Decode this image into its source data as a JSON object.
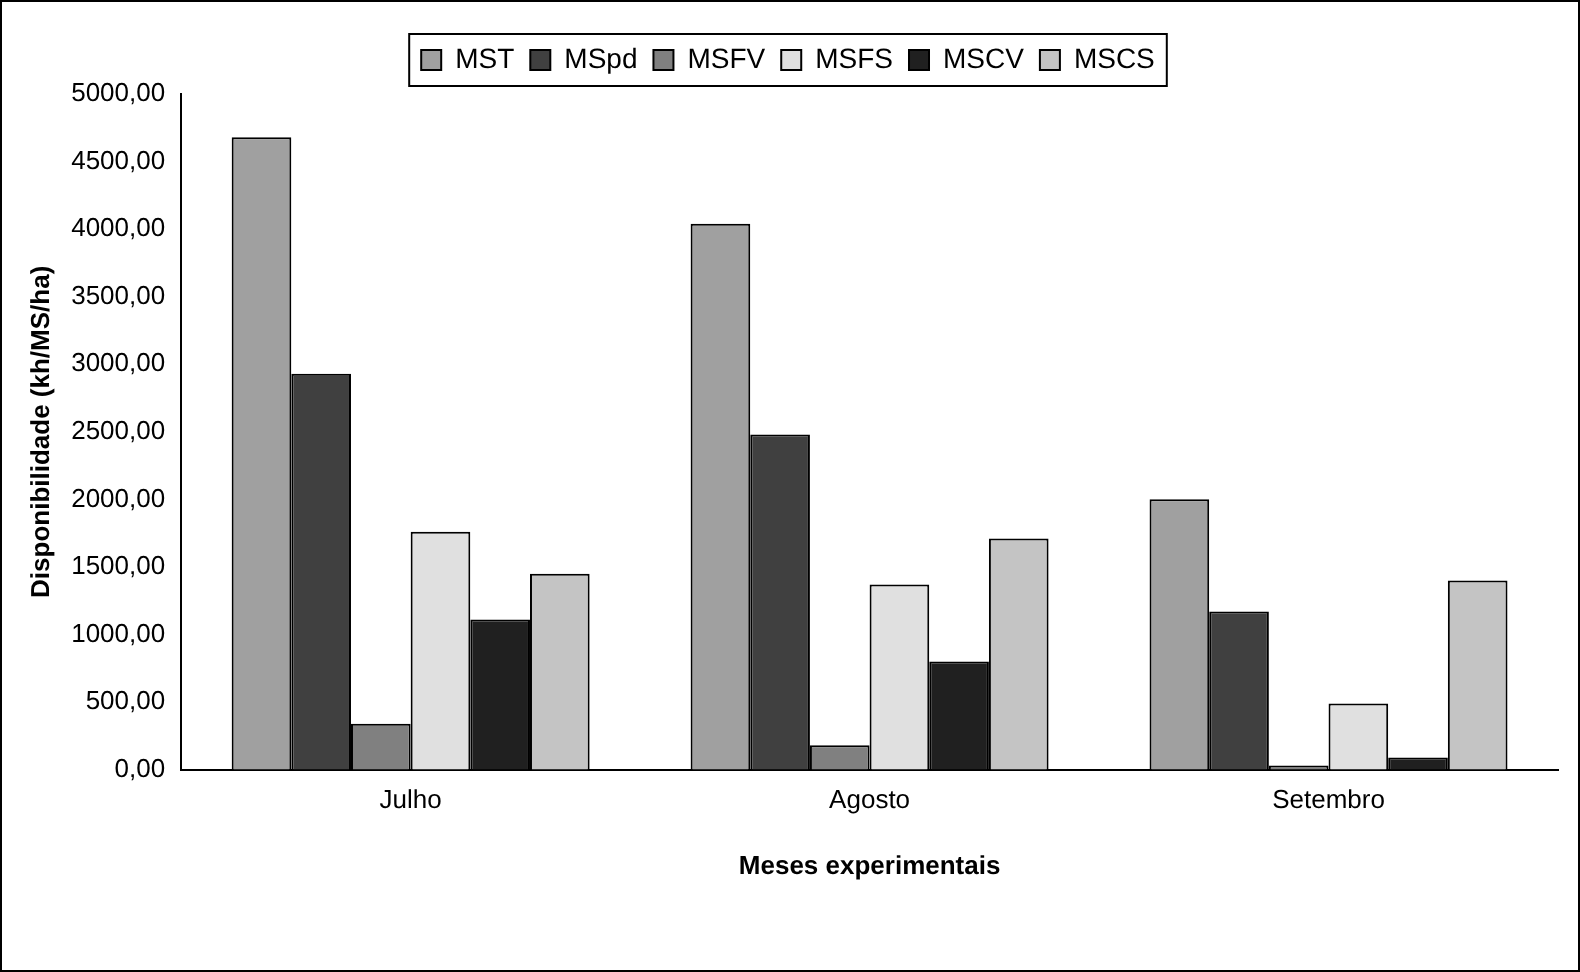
{
  "chart_data": {
    "type": "bar",
    "xlabel": "Meses experimentais",
    "ylabel": "Disponibilidade (kh/MS/ha)",
    "categories": [
      "Julho",
      "Agosto",
      "Setembro"
    ],
    "series": [
      {
        "name": "MST",
        "color": "#a0a0a0",
        "values": [
          4680,
          4040,
          2000
        ]
      },
      {
        "name": "MSpd",
        "color": "#404040",
        "values": [
          2930,
          2480,
          1170
        ]
      },
      {
        "name": "MSFV",
        "color": "#808080",
        "values": [
          340,
          180,
          30
        ]
      },
      {
        "name": "MSFS",
        "color": "#e0e0e0",
        "values": [
          1760,
          1370,
          490
        ]
      },
      {
        "name": "MSCV",
        "color": "#202020",
        "values": [
          1110,
          800,
          90
        ]
      },
      {
        "name": "MSCS",
        "color": "#c4c4c4",
        "values": [
          1450,
          1710,
          1400
        ]
      }
    ],
    "ylim": [
      0,
      5000
    ],
    "yticks": [
      {
        "value": 0,
        "label": "0,00"
      },
      {
        "value": 500,
        "label": "500,00"
      },
      {
        "value": 1000,
        "label": "1000,00"
      },
      {
        "value": 1500,
        "label": "1500,00"
      },
      {
        "value": 2000,
        "label": "2000,00"
      },
      {
        "value": 2500,
        "label": "2500,00"
      },
      {
        "value": 3000,
        "label": "3000,00"
      },
      {
        "value": 3500,
        "label": "3500,00"
      },
      {
        "value": 4000,
        "label": "4000,00"
      },
      {
        "value": 4500,
        "label": "4500,00"
      },
      {
        "value": 5000,
        "label": "5000,00"
      }
    ],
    "grid": false,
    "legend": "top"
  }
}
